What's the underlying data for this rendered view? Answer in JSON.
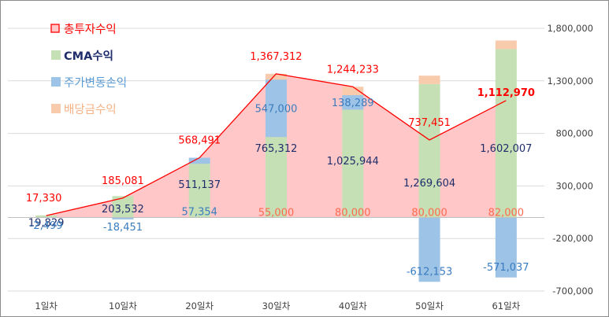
{
  "chart_data": {
    "type": "bar",
    "categories": [
      "1일차",
      "10일차",
      "20일차",
      "30일차",
      "40일차",
      "50일차",
      "61일차"
    ],
    "ylim": [
      -700000,
      1800000
    ],
    "yticks": [
      -700000,
      -200000,
      300000,
      800000,
      1300000,
      1800000
    ],
    "ytick_labels": [
      "-700,000",
      "-200,000",
      "300,000",
      "800,000",
      "1,300,000",
      "1,800,000"
    ],
    "grid": true,
    "legend_position": "top-left",
    "series": [
      {
        "key": "total",
        "name": "총투자수익",
        "kind": "area-line",
        "color": "#ff0000",
        "fill": "#ffc7c7",
        "values": [
          17330,
          185081,
          568491,
          1367312,
          1244233,
          737451,
          1112970
        ],
        "labels": [
          "17,330",
          "185,081",
          "568,491",
          "1,367,312",
          "1,244,233",
          "737,451",
          "1,112,970"
        ]
      },
      {
        "key": "cma",
        "name": "CMA수익",
        "kind": "bar",
        "color": "#c5e0b4",
        "label_color": "#1f2d6b",
        "values": [
          19829,
          203532,
          511137,
          765312,
          1025944,
          1269604,
          1602007
        ],
        "labels": [
          "19,829",
          "203,532",
          "511,137",
          "765,312",
          "1,025,944",
          "1,269,604",
          "1,602,007"
        ]
      },
      {
        "key": "stock",
        "name": "주가변동손익",
        "kind": "bar",
        "color": "#9dc3e6",
        "label_color": "#3a7cc0",
        "values": [
          -2499,
          -18451,
          57354,
          547000,
          138289,
          -612153,
          -571037
        ],
        "labels": [
          "-2,499",
          "-18,451",
          "57,354",
          "547,000",
          "138,289",
          "-612,153",
          "-571,037"
        ]
      },
      {
        "key": "dividend",
        "name": "배당금수익",
        "kind": "bar",
        "color": "#f8cbad",
        "label_color": "#ff6a4d",
        "values": [
          0,
          0,
          0,
          55000,
          80000,
          80000,
          82000
        ],
        "labels": [
          "",
          "",
          "",
          "55,000",
          "80,000",
          "80,000",
          "82,000"
        ]
      }
    ],
    "legend_colors": {
      "total_text": "#ff0000",
      "cma_text": "#1f2d6b",
      "stock_text": "#5b9bd5",
      "dividend_text": "#f4b183"
    }
  }
}
